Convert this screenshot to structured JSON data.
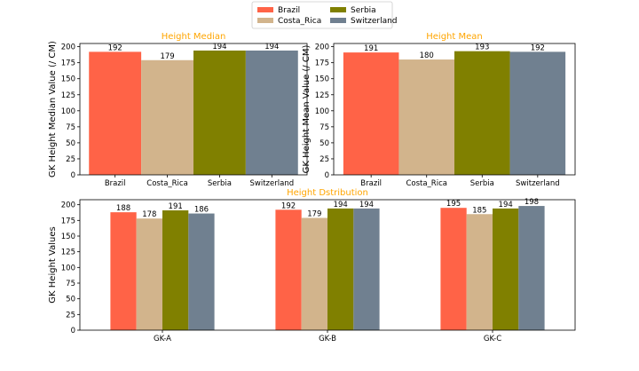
{
  "legend": {
    "placement": "top-center",
    "entries": [
      {
        "name": "Brazil",
        "color": "#FF6347"
      },
      {
        "name": "Costa_Rica",
        "color": "#D2B48C"
      },
      {
        "name": "Serbia",
        "color": "#808000"
      },
      {
        "name": "Switzerland",
        "color": "#708090"
      }
    ]
  },
  "colors": {
    "title": "#FFA500",
    "axis": "#000000"
  },
  "chart_data": [
    {
      "type": "bar",
      "title": "Height Median",
      "xlabel": "",
      "ylabel": "GK Height Median Value (/ CM)",
      "categories": [
        "Brazil",
        "Costa_Rica",
        "Serbia",
        "Switzerland"
      ],
      "values": [
        192,
        179,
        194,
        194
      ],
      "ylim": [
        0,
        205
      ],
      "yticks": [
        0,
        25,
        50,
        75,
        100,
        125,
        150,
        175,
        200
      ],
      "grid": false
    },
    {
      "type": "bar",
      "title": "Height Mean",
      "xlabel": "",
      "ylabel": "GK Height Mean Value (/ CM)",
      "categories": [
        "Brazil",
        "Costa_Rica",
        "Serbia",
        "Switzerland"
      ],
      "values": [
        191,
        180,
        193,
        192
      ],
      "ylim": [
        0,
        205
      ],
      "yticks": [
        0,
        25,
        50,
        75,
        100,
        125,
        150,
        175,
        200
      ],
      "grid": false
    },
    {
      "type": "bar",
      "title": "Height Dstribution",
      "xlabel": "",
      "ylabel": "GK Height Values",
      "categories": [
        "GK-A",
        "GK-B",
        "GK-C"
      ],
      "series": [
        {
          "name": "Brazil",
          "values": [
            188,
            192,
            195
          ]
        },
        {
          "name": "Costa_Rica",
          "values": [
            178,
            179,
            185
          ]
        },
        {
          "name": "Serbia",
          "values": [
            191,
            194,
            194
          ]
        },
        {
          "name": "Switzerland",
          "values": [
            186,
            194,
            198
          ]
        }
      ],
      "ylim": [
        0,
        208
      ],
      "yticks": [
        0,
        25,
        50,
        75,
        100,
        125,
        150,
        175,
        200
      ],
      "grid": false
    }
  ]
}
